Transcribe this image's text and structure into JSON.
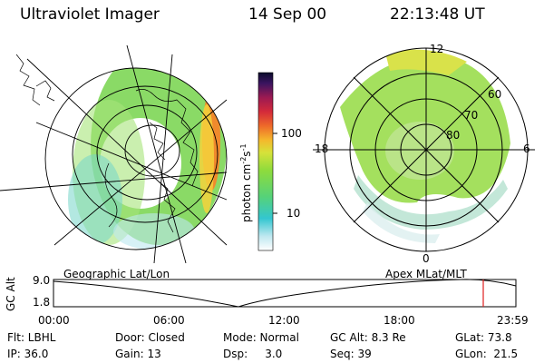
{
  "header": {
    "instrument": "Ultraviolet Imager",
    "date": "14 Sep 00",
    "time": "22:13:48 UT"
  },
  "colorbar": {
    "label": "photon cm",
    "label_sup1": "-2",
    "label_mid": "s",
    "label_sup2": "-1",
    "tick_100": "100",
    "tick_10": "10"
  },
  "polar_plot": {
    "mlt_labels": {
      "top": "12",
      "left": "18",
      "right": "6",
      "bottom": "0"
    },
    "lat_labels": [
      "60",
      "70",
      "80"
    ]
  },
  "captions": {
    "left": "Geographic Lat/Lon",
    "right": "Apex  MLat/MLT"
  },
  "altitude_plot": {
    "ylabel": "GC Alt",
    "y_max": "9.0",
    "y_min": "1.8",
    "x_ticks": [
      "00:00",
      "06:00",
      "12:00",
      "18:00",
      "23:59"
    ],
    "marker_color": "#e02020"
  },
  "info": {
    "row1": {
      "flt": "Flt: LBHL",
      "door": "Door: Closed",
      "mode": "Mode: Normal",
      "gcalt": "GC Alt: 8.3 Re",
      "glat": "GLat: 73.8"
    },
    "row2": {
      "ip": "IP: 36.0",
      "gain": "Gain: 13",
      "dsp": "Dsp:     3.0",
      "seq": "Seq: 39",
      "glon": "GLon:  21.5"
    }
  }
}
